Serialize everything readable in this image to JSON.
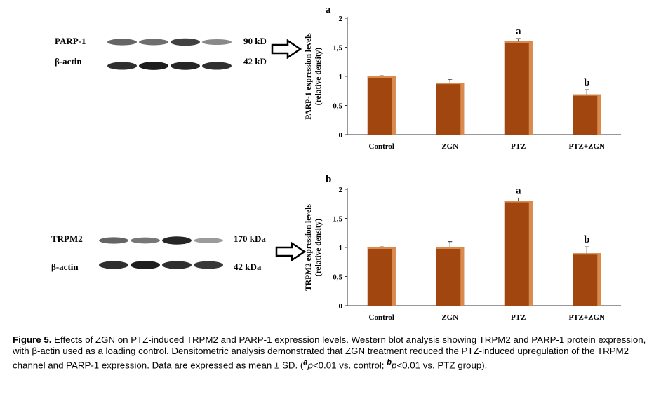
{
  "figure_caption": {
    "lead": "Figure 5.",
    "text_1": " Effects of ZGN on PTZ-induced TRPM2 and PARP-1 expression levels. Western blot analysis showing TRPM2 and PARP-1 protein expression, with β-actin used as a loading control. Densitometric analysis demonstrated that ZGN treatment reduced the PTZ-induced upregulation of the TRPM2 channel and PARP-1 expression. Data are expressed as mean ± SD. (",
    "sup_a": "a",
    "p_a": "p",
    "text_2": "<0.01 vs. control; ",
    "sup_b": "b",
    "p_b": "p",
    "text_3": "<0.01 vs. PTZ group)."
  },
  "blots": [
    {
      "protein_label": "PARP-1",
      "protein_size": "90 kD",
      "control_label": "β-actin",
      "control_size": "42 kD",
      "protein_band_intensity": [
        0.55,
        0.5,
        0.75,
        0.35
      ],
      "control_band_intensity": [
        0.85,
        0.95,
        0.9,
        0.85
      ]
    },
    {
      "protein_label": "TRPM2",
      "protein_size": "170 kDa",
      "control_label": "β-actin",
      "control_size": "42 kDa",
      "protein_band_intensity": [
        0.55,
        0.45,
        0.9,
        0.25
      ],
      "control_band_intensity": [
        0.85,
        0.95,
        0.85,
        0.8
      ]
    }
  ],
  "colors": {
    "bar_fill": "#a0460e",
    "bar_highlight": "#d98a4c",
    "axis": "#333333"
  },
  "chart_data": [
    {
      "type": "bar",
      "panel_label": "a",
      "categories": [
        "Control",
        "ZGN",
        "PTZ",
        "PTZ+ZGN"
      ],
      "values": [
        1.0,
        0.89,
        1.6,
        0.69
      ],
      "errors": [
        0.01,
        0.06,
        0.05,
        0.08
      ],
      "significance": [
        "",
        "",
        "a",
        "b"
      ],
      "ylabel_line1": "PARP-1  expression levels",
      "ylabel_line2": "(relative density)",
      "ylim": [
        0,
        2
      ],
      "yticks": [
        "0",
        "0,5",
        "1",
        "1,5",
        "2"
      ],
      "grid": false
    },
    {
      "type": "bar",
      "panel_label": "b",
      "categories": [
        "Control",
        "ZGN",
        "PTZ",
        "PTZ+ZGN"
      ],
      "values": [
        1.0,
        1.0,
        1.8,
        0.9
      ],
      "errors": [
        0.01,
        0.1,
        0.05,
        0.11
      ],
      "significance": [
        "",
        "",
        "a",
        "b"
      ],
      "ylabel_line1": "TRPM2 expression levels",
      "ylabel_line2": "(relative density)",
      "ylim": [
        0,
        2
      ],
      "yticks": [
        "0",
        "0,5",
        "1",
        "1,5",
        "2"
      ],
      "grid": false
    }
  ]
}
